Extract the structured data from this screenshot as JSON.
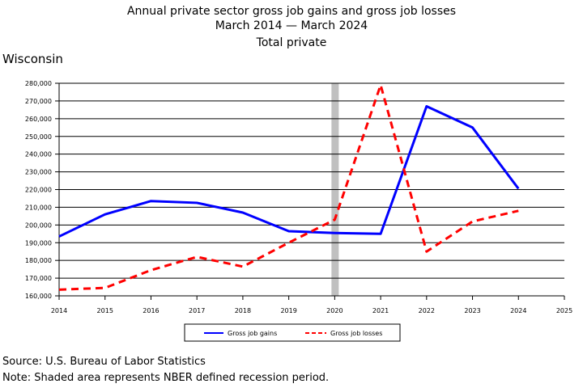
{
  "chart_data": {
    "type": "line",
    "title": "Annual private sector gross job gains and gross job losses",
    "subtitle": "March 2014 — March 2024",
    "subtitle2": "Total private",
    "region": "Wisconsin",
    "x": [
      2014,
      2015,
      2016,
      2017,
      2018,
      2019,
      2020,
      2021,
      2022,
      2023,
      2024
    ],
    "xticks": [
      "2014",
      "2015",
      "2016",
      "2017",
      "2018",
      "2019",
      "2020",
      "2021",
      "2022",
      "2023",
      "2024",
      "2025"
    ],
    "xlim": [
      2014,
      2025
    ],
    "ylim": [
      160000,
      280000
    ],
    "yticks": [
      "160,000",
      "170,000",
      "180,000",
      "190,000",
      "200,000",
      "210,000",
      "220,000",
      "230,000",
      "240,000",
      "250,000",
      "260,000",
      "270,000",
      "280,000"
    ],
    "grid": true,
    "recession_period": 2020,
    "series": [
      {
        "name": "Gross job gains",
        "color": "#0000ff",
        "style": "solid",
        "values": [
          193500,
          206000,
          213500,
          212500,
          207000,
          196500,
          195500,
          195000,
          267000,
          255000,
          220500
        ]
      },
      {
        "name": "Gross job losses",
        "color": "#ff0000",
        "style": "dashed",
        "values": [
          163500,
          164500,
          174500,
          182000,
          176500,
          190000,
          203000,
          279000,
          185000,
          202000,
          208000
        ]
      }
    ],
    "legend_placement": "bottom-center"
  },
  "footer": {
    "source": "Source: U.S. Bureau of Labor Statistics",
    "note": "Note: Shaded area represents NBER defined recession period."
  }
}
